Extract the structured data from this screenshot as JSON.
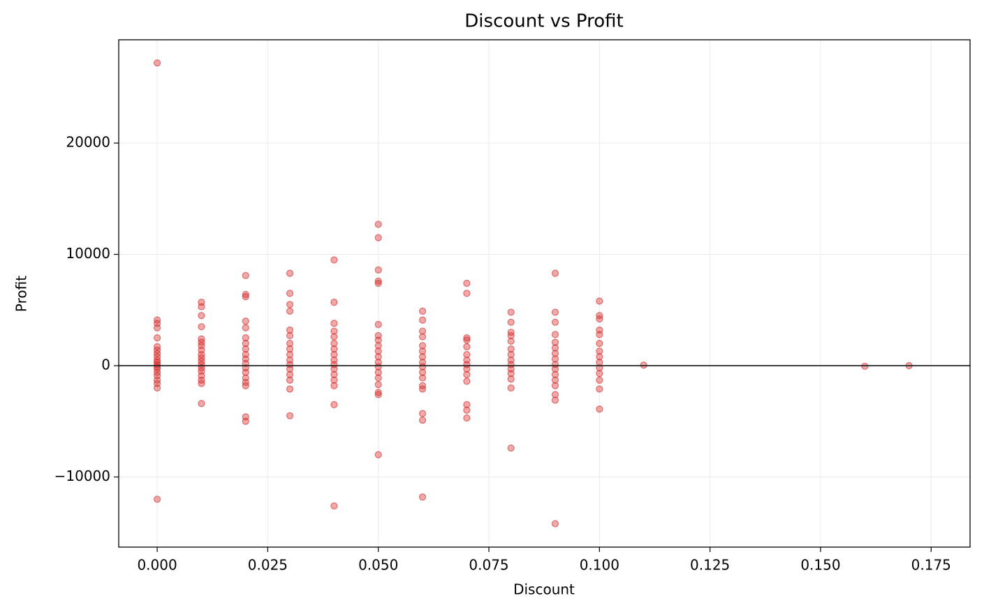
{
  "chart_data": {
    "type": "scatter",
    "title": "Discount vs Profit",
    "x_label": "Discount",
    "y_label": "Profit",
    "color": "#d62728",
    "grid": true,
    "hline": 0,
    "xlim": [
      -0.0087,
      0.1838
    ],
    "ylim": [
      -16300,
      29280
    ],
    "xticks": [
      {
        "value": 0,
        "label": "0.000"
      },
      {
        "value": 0.025,
        "label": "0.025"
      },
      {
        "value": 0.05,
        "label": "0.050"
      },
      {
        "value": 0.075,
        "label": "0.075"
      },
      {
        "value": 0.1,
        "label": "0.100"
      },
      {
        "value": 0.125,
        "label": "0.125"
      },
      {
        "value": 0.15,
        "label": "0.150"
      },
      {
        "value": 0.175,
        "label": "0.175"
      }
    ],
    "yticks": [
      {
        "value": -10000,
        "label": "−10000"
      },
      0,
      10000,
      20000
    ],
    "x": [
      0,
      0,
      0,
      0,
      0,
      0,
      0,
      0,
      0,
      0,
      0,
      0,
      0,
      0,
      0,
      0,
      0,
      0,
      0,
      0,
      0.01,
      0.01,
      0.01,
      0.01,
      0.01,
      0.01,
      0.01,
      0.01,
      0.01,
      0.01,
      0.01,
      0.01,
      0.01,
      0.01,
      0.01,
      0.01,
      0.01,
      0.01,
      0.02,
      0.02,
      0.02,
      0.02,
      0.02,
      0.02,
      0.02,
      0.02,
      0.02,
      0.02,
      0.02,
      0.02,
      0.02,
      0.02,
      0.02,
      0.02,
      0.02,
      0.02,
      0.03,
      0.03,
      0.03,
      0.03,
      0.03,
      0.03,
      0.03,
      0.03,
      0.03,
      0.03,
      0.03,
      0.03,
      0.03,
      0.03,
      0.03,
      0.03,
      0.04,
      0.04,
      0.04,
      0.04,
      0.04,
      0.04,
      0.04,
      0.04,
      0.04,
      0.04,
      0.04,
      0.04,
      0.04,
      0.04,
      0.04,
      0.04,
      0.05,
      0.05,
      0.05,
      0.05,
      0.05,
      0.05,
      0.05,
      0.05,
      0.05,
      0.05,
      0.05,
      0.05,
      0.05,
      0.05,
      0.05,
      0.05,
      0.05,
      0.05,
      0.05,
      0.06,
      0.06,
      0.06,
      0.06,
      0.06,
      0.06,
      0.06,
      0.06,
      0.06,
      0.06,
      0.06,
      0.06,
      0.06,
      0.06,
      0.06,
      0.06,
      0.07,
      0.07,
      0.07,
      0.07,
      0.07,
      0.07,
      0.07,
      0.07,
      0.07,
      0.07,
      0.07,
      0.07,
      0.07,
      0.07,
      0.08,
      0.08,
      0.08,
      0.08,
      0.08,
      0.08,
      0.08,
      0.08,
      0.08,
      0.08,
      0.08,
      0.08,
      0.08,
      0.08,
      0.09,
      0.09,
      0.09,
      0.09,
      0.09,
      0.09,
      0.09,
      0.09,
      0.09,
      0.09,
      0.09,
      0.09,
      0.09,
      0.09,
      0.09,
      0.09,
      0.1,
      0.1,
      0.1,
      0.1,
      0.1,
      0.1,
      0.1,
      0.1,
      0.1,
      0.1,
      0.1,
      0.1,
      0.1,
      0.1,
      0.11,
      0.16,
      0.17
    ],
    "y": [
      27200,
      4100,
      3800,
      3400,
      2500,
      1700,
      1400,
      1100,
      800,
      500,
      300,
      100,
      -100,
      -300,
      -600,
      -900,
      -1300,
      -1600,
      -2000,
      -12000,
      5700,
      5300,
      4500,
      3500,
      2400,
      2100,
      1800,
      1400,
      1000,
      700,
      400,
      100,
      -200,
      -500,
      -900,
      -1300,
      -1600,
      -3400,
      8100,
      6400,
      6200,
      4000,
      3400,
      2500,
      2000,
      1500,
      1000,
      600,
      200,
      -200,
      -600,
      -1100,
      -1500,
      -1800,
      -4600,
      -5000,
      8300,
      6500,
      5500,
      4900,
      3200,
      2700,
      2000,
      1500,
      1000,
      500,
      100,
      -300,
      -800,
      -1300,
      -2100,
      -4500,
      9500,
      5700,
      3800,
      3100,
      2600,
      2000,
      1500,
      1000,
      500,
      100,
      -300,
      -800,
      -1300,
      -1800,
      -3500,
      -12600,
      12700,
      11500,
      8600,
      7600,
      7400,
      3700,
      2700,
      2300,
      1800,
      1300,
      800,
      300,
      -100,
      -600,
      -1100,
      -1700,
      -2400,
      -2600,
      -8000,
      4900,
      4100,
      3100,
      2600,
      1800,
      1300,
      800,
      300,
      -100,
      -600,
      -1100,
      -1800,
      -2100,
      -4300,
      -4900,
      -11800,
      7400,
      6500,
      2500,
      2300,
      1700,
      1000,
      500,
      100,
      -300,
      -800,
      -1400,
      -3500,
      -4000,
      -4700,
      4800,
      3900,
      3000,
      2700,
      2200,
      1500,
      1000,
      500,
      100,
      -300,
      -700,
      -1200,
      -2000,
      -7400,
      8300,
      4800,
      3900,
      2800,
      2100,
      1600,
      1100,
      600,
      100,
      -300,
      -800,
      -1300,
      -1800,
      -2600,
      -3100,
      -14200,
      5800,
      4500,
      4200,
      3200,
      2800,
      2000,
      1300,
      800,
      300,
      -200,
      -700,
      -1300,
      -2100,
      -3900,
      50,
      -50,
      0
    ]
  }
}
